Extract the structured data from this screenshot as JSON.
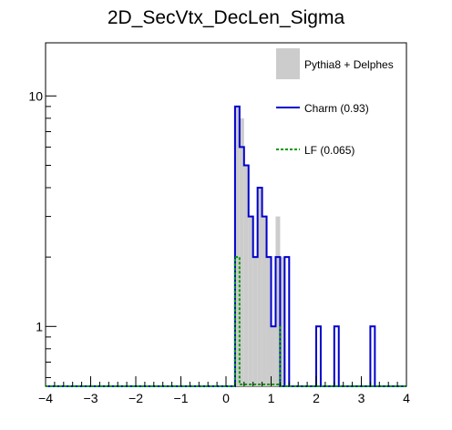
{
  "chart_data": {
    "type": "histogram",
    "title": "2D_SecVtx_DecLen_Sigma",
    "xlabel": "",
    "ylabel": "",
    "xlim": [
      -4,
      4
    ],
    "ylim": [
      0.55,
      17
    ],
    "yscale": "log",
    "grid": false,
    "legend_position": "top-right",
    "x_ticks": [
      {
        "value": -4,
        "label": "−4"
      },
      {
        "value": -3,
        "label": "−3"
      },
      {
        "value": -2,
        "label": "−2"
      },
      {
        "value": -1,
        "label": "−1"
      },
      {
        "value": 0,
        "label": "0"
      },
      {
        "value": 1,
        "label": "1"
      },
      {
        "value": 2,
        "label": "2"
      },
      {
        "value": 3,
        "label": "3"
      },
      {
        "value": 4,
        "label": "4"
      }
    ],
    "y_ticks": [
      {
        "value": 1,
        "label": "1"
      },
      {
        "value": 10,
        "label": "10"
      }
    ],
    "bin_width": 0.1,
    "series": [
      {
        "name": "Pythia8 + Delphes",
        "style": "filled",
        "color": "#cccccc",
        "bins": [
          {
            "x": 0.2,
            "y": 9
          },
          {
            "x": 0.3,
            "y": 8
          },
          {
            "x": 0.4,
            "y": 5
          },
          {
            "x": 0.5,
            "y": 3
          },
          {
            "x": 0.6,
            "y": 2
          },
          {
            "x": 0.7,
            "y": 4
          },
          {
            "x": 0.8,
            "y": 3
          },
          {
            "x": 0.9,
            "y": 2
          },
          {
            "x": 1.0,
            "y": 1
          },
          {
            "x": 1.1,
            "y": 3
          },
          {
            "x": 1.2,
            "y": 2
          }
        ]
      },
      {
        "name": "Charm (0.93)",
        "style": "line",
        "color": "#0000cc",
        "bins": [
          {
            "x": 0.2,
            "y": 9
          },
          {
            "x": 0.3,
            "y": 6
          },
          {
            "x": 0.4,
            "y": 5
          },
          {
            "x": 0.5,
            "y": 3
          },
          {
            "x": 0.6,
            "y": 2
          },
          {
            "x": 0.7,
            "y": 4
          },
          {
            "x": 0.8,
            "y": 3
          },
          {
            "x": 0.9,
            "y": 2
          },
          {
            "x": 1.0,
            "y": 1
          },
          {
            "x": 1.1,
            "y": 2
          },
          {
            "x": 1.3,
            "y": 2
          },
          {
            "x": 2.0,
            "y": 1
          },
          {
            "x": 2.4,
            "y": 1
          },
          {
            "x": 3.2,
            "y": 1
          }
        ]
      },
      {
        "name": "LF (0.065)",
        "style": "dashed",
        "color": "#009900",
        "bins": [
          {
            "x": 0.2,
            "y": 2
          }
        ],
        "plateau": {
          "from": 0.3,
          "to": 1.2,
          "y": 0.56
        }
      }
    ]
  }
}
